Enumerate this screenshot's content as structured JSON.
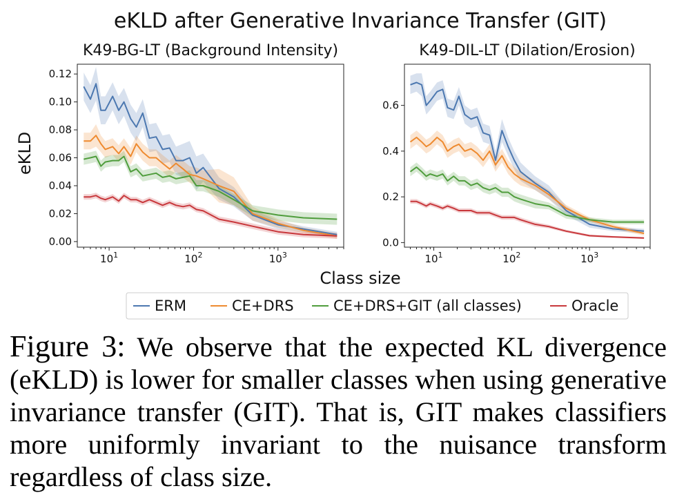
{
  "figure": {
    "suptitle": "eKLD after Generative Invariance Transfer (GIT)",
    "ylabel": "eKLD",
    "xlabel": "Class size"
  },
  "legend": [
    {
      "name": "ERM",
      "color": "#4c78b0"
    },
    {
      "name": "CE+DRS",
      "color": "#ee8a2f"
    },
    {
      "name": "CE+DRS+GIT (all classes)",
      "color": "#4f9d3c"
    },
    {
      "name": "Oracle",
      "color": "#c8373b"
    }
  ],
  "chart_data": [
    {
      "type": "line",
      "title": "K49-BG-LT (Background Intensity)",
      "xscale": "log",
      "xlim": [
        4.2,
        6000
      ],
      "ylim": [
        -0.004,
        0.127
      ],
      "x_ticks": [
        {
          "value": 10,
          "base": "10",
          "exp": "1"
        },
        {
          "value": 100,
          "base": "10",
          "exp": "2"
        },
        {
          "value": 1000,
          "base": "10",
          "exp": "3"
        }
      ],
      "y_ticks": [
        "0.00",
        "0.02",
        "0.04",
        "0.06",
        "0.08",
        "0.10",
        "0.12"
      ],
      "y_tick_values": [
        0.0,
        0.02,
        0.04,
        0.06,
        0.08,
        0.1,
        0.12
      ],
      "bands": true,
      "series": [
        {
          "name": "ERM",
          "color": "#4c78b0",
          "x": [
            5,
            6,
            7,
            8,
            9,
            11,
            13,
            15,
            18,
            21,
            25,
            30,
            36,
            43,
            52,
            62,
            75,
            90,
            108,
            130,
            200,
            300,
            500,
            1000,
            2000,
            5000
          ],
          "y": [
            0.111,
            0.102,
            0.113,
            0.094,
            0.094,
            0.104,
            0.094,
            0.1,
            0.088,
            0.082,
            0.092,
            0.074,
            0.075,
            0.066,
            0.067,
            0.058,
            0.058,
            0.06,
            0.049,
            0.053,
            0.038,
            0.032,
            0.019,
            0.012,
            0.009,
            0.005
          ],
          "spread": [
            0.01,
            0.01,
            0.012,
            0.01,
            0.01,
            0.01,
            0.01,
            0.01,
            0.01,
            0.01,
            0.01,
            0.01,
            0.01,
            0.01,
            0.01,
            0.01,
            0.012,
            0.012,
            0.012,
            0.01,
            0.008,
            0.007,
            0.004,
            0.003,
            0.002,
            0.002
          ]
        },
        {
          "name": "CE+DRS",
          "color": "#ee8a2f",
          "x": [
            5,
            6,
            7,
            8,
            9,
            11,
            13,
            15,
            18,
            21,
            25,
            30,
            36,
            43,
            52,
            62,
            75,
            90,
            108,
            130,
            200,
            300,
            500,
            1000,
            2000,
            5000
          ],
          "y": [
            0.072,
            0.072,
            0.076,
            0.07,
            0.066,
            0.068,
            0.063,
            0.068,
            0.061,
            0.07,
            0.064,
            0.06,
            0.06,
            0.056,
            0.052,
            0.056,
            0.052,
            0.048,
            0.047,
            0.045,
            0.04,
            0.036,
            0.02,
            0.013,
            0.008,
            0.004
          ],
          "spread": [
            0.006,
            0.006,
            0.008,
            0.006,
            0.006,
            0.006,
            0.006,
            0.006,
            0.006,
            0.006,
            0.006,
            0.006,
            0.006,
            0.006,
            0.006,
            0.006,
            0.006,
            0.006,
            0.006,
            0.006,
            0.012,
            0.01,
            0.005,
            0.003,
            0.002,
            0.002
          ]
        },
        {
          "name": "CE+DRS+GIT (all classes)",
          "color": "#4f9d3c",
          "x": [
            5,
            6,
            7,
            8,
            9,
            11,
            13,
            15,
            18,
            21,
            25,
            30,
            36,
            43,
            52,
            62,
            75,
            90,
            108,
            130,
            200,
            300,
            500,
            1000,
            2000,
            5000
          ],
          "y": [
            0.059,
            0.06,
            0.061,
            0.054,
            0.057,
            0.058,
            0.058,
            0.061,
            0.05,
            0.052,
            0.047,
            0.048,
            0.049,
            0.046,
            0.047,
            0.045,
            0.046,
            0.047,
            0.04,
            0.04,
            0.036,
            0.03,
            0.022,
            0.019,
            0.017,
            0.016
          ],
          "spread": [
            0.004,
            0.004,
            0.004,
            0.004,
            0.004,
            0.004,
            0.004,
            0.004,
            0.004,
            0.004,
            0.004,
            0.004,
            0.004,
            0.004,
            0.004,
            0.004,
            0.004,
            0.004,
            0.004,
            0.004,
            0.004,
            0.004,
            0.004,
            0.004,
            0.004,
            0.004
          ]
        },
        {
          "name": "Oracle",
          "color": "#c8373b",
          "x": [
            5,
            6,
            7,
            8,
            9,
            11,
            13,
            15,
            18,
            21,
            25,
            30,
            36,
            43,
            52,
            62,
            75,
            90,
            108,
            130,
            200,
            300,
            500,
            1000,
            2000,
            5000
          ],
          "y": [
            0.032,
            0.032,
            0.033,
            0.031,
            0.03,
            0.032,
            0.029,
            0.033,
            0.03,
            0.03,
            0.028,
            0.03,
            0.028,
            0.026,
            0.028,
            0.026,
            0.025,
            0.026,
            0.023,
            0.022,
            0.016,
            0.014,
            0.011,
            0.007,
            0.005,
            0.004
          ],
          "spread": [
            0.002,
            0.002,
            0.002,
            0.002,
            0.002,
            0.002,
            0.002,
            0.002,
            0.002,
            0.002,
            0.002,
            0.002,
            0.002,
            0.002,
            0.002,
            0.002,
            0.002,
            0.002,
            0.002,
            0.002,
            0.002,
            0.002,
            0.002,
            0.002,
            0.002,
            0.002
          ]
        }
      ]
    },
    {
      "type": "line",
      "title": "K49-DIL-LT (Dilation/Erosion)",
      "xscale": "log",
      "xlim": [
        4.2,
        6000
      ],
      "ylim": [
        -0.02,
        0.78
      ],
      "x_ticks": [
        {
          "value": 10,
          "base": "10",
          "exp": "1"
        },
        {
          "value": 100,
          "base": "10",
          "exp": "2"
        },
        {
          "value": 1000,
          "base": "10",
          "exp": "3"
        }
      ],
      "y_ticks": [
        "0.0",
        "0.2",
        "0.4",
        "0.6"
      ],
      "y_tick_values": [
        0.0,
        0.2,
        0.4,
        0.6
      ],
      "bands": true,
      "series": [
        {
          "name": "ERM",
          "color": "#4c78b0",
          "x": [
            5,
            6,
            7,
            8,
            9,
            11,
            13,
            15,
            18,
            21,
            25,
            30,
            36,
            43,
            52,
            62,
            75,
            90,
            108,
            130,
            200,
            300,
            500,
            1000,
            2000,
            5000
          ],
          "y": [
            0.69,
            0.7,
            0.69,
            0.6,
            0.62,
            0.66,
            0.67,
            0.59,
            0.58,
            0.64,
            0.56,
            0.54,
            0.55,
            0.48,
            0.47,
            0.36,
            0.49,
            0.42,
            0.36,
            0.31,
            0.26,
            0.22,
            0.14,
            0.08,
            0.06,
            0.05
          ],
          "spread": [
            0.04,
            0.04,
            0.05,
            0.04,
            0.04,
            0.04,
            0.04,
            0.04,
            0.04,
            0.04,
            0.04,
            0.04,
            0.04,
            0.04,
            0.04,
            0.04,
            0.05,
            0.04,
            0.04,
            0.04,
            0.03,
            0.03,
            0.02,
            0.015,
            0.01,
            0.01
          ]
        },
        {
          "name": "CE+DRS",
          "color": "#ee8a2f",
          "x": [
            5,
            6,
            7,
            8,
            9,
            11,
            13,
            15,
            18,
            21,
            25,
            30,
            36,
            43,
            52,
            62,
            75,
            90,
            108,
            130,
            200,
            300,
            500,
            1000,
            2000,
            5000
          ],
          "y": [
            0.44,
            0.46,
            0.44,
            0.42,
            0.43,
            0.46,
            0.44,
            0.4,
            0.42,
            0.43,
            0.4,
            0.41,
            0.39,
            0.36,
            0.4,
            0.34,
            0.38,
            0.33,
            0.3,
            0.28,
            0.25,
            0.21,
            0.15,
            0.1,
            0.07,
            0.04
          ],
          "spread": [
            0.03,
            0.03,
            0.03,
            0.03,
            0.03,
            0.03,
            0.03,
            0.03,
            0.03,
            0.03,
            0.03,
            0.03,
            0.03,
            0.03,
            0.03,
            0.03,
            0.03,
            0.03,
            0.03,
            0.03,
            0.02,
            0.02,
            0.015,
            0.01,
            0.01,
            0.01
          ]
        },
        {
          "name": "CE+DRS+GIT (all classes)",
          "color": "#4f9d3c",
          "x": [
            5,
            6,
            7,
            8,
            9,
            11,
            13,
            15,
            18,
            21,
            25,
            30,
            36,
            43,
            52,
            62,
            75,
            90,
            108,
            130,
            200,
            300,
            500,
            1000,
            2000,
            5000
          ],
          "y": [
            0.31,
            0.33,
            0.31,
            0.29,
            0.3,
            0.29,
            0.3,
            0.27,
            0.29,
            0.27,
            0.27,
            0.25,
            0.26,
            0.24,
            0.23,
            0.24,
            0.22,
            0.22,
            0.2,
            0.19,
            0.17,
            0.16,
            0.12,
            0.1,
            0.09,
            0.09
          ],
          "spread": [
            0.02,
            0.02,
            0.02,
            0.02,
            0.02,
            0.02,
            0.02,
            0.02,
            0.02,
            0.02,
            0.02,
            0.02,
            0.02,
            0.02,
            0.02,
            0.02,
            0.02,
            0.02,
            0.02,
            0.02,
            0.02,
            0.015,
            0.015,
            0.01,
            0.01,
            0.01
          ]
        },
        {
          "name": "Oracle",
          "color": "#c8373b",
          "x": [
            5,
            6,
            7,
            8,
            9,
            11,
            13,
            15,
            18,
            21,
            25,
            30,
            36,
            43,
            52,
            62,
            75,
            90,
            108,
            130,
            200,
            300,
            500,
            1000,
            2000,
            5000
          ],
          "y": [
            0.18,
            0.18,
            0.17,
            0.16,
            0.17,
            0.16,
            0.15,
            0.16,
            0.15,
            0.14,
            0.14,
            0.14,
            0.13,
            0.13,
            0.13,
            0.12,
            0.11,
            0.11,
            0.11,
            0.1,
            0.08,
            0.07,
            0.05,
            0.03,
            0.025,
            0.02
          ],
          "spread": [
            0.01,
            0.01,
            0.01,
            0.01,
            0.01,
            0.01,
            0.01,
            0.01,
            0.01,
            0.01,
            0.01,
            0.01,
            0.01,
            0.01,
            0.01,
            0.01,
            0.01,
            0.01,
            0.01,
            0.01,
            0.01,
            0.008,
            0.006,
            0.005,
            0.004,
            0.004
          ]
        }
      ]
    }
  ],
  "caption": {
    "label": "Figure 3:",
    "text": "We observe that the expected KL divergence (eKLD) is lower for smaller classes when using generative invariance transfer (GIT). That is, GIT makes classifiers more uniformly invariant to the nuisance transform regardless of class size."
  }
}
